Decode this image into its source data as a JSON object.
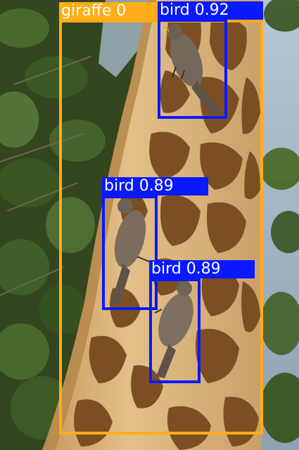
{
  "detections": [
    {
      "label": "giraffe 0",
      "class": "giraffe",
      "color": "#ffad18"
    },
    {
      "label": "bird 0.92",
      "class": "bird",
      "confidence": 0.92,
      "color": "#0a19ff"
    },
    {
      "label": "bird 0.89",
      "class": "bird",
      "confidence": 0.89,
      "color": "#0a19ff"
    },
    {
      "label": "bird 0.89",
      "class": "bird",
      "confidence": 0.89,
      "color": "#0a19ff"
    }
  ],
  "palette": {
    "foliage": "#3f5a2a",
    "sky": "#a7b9c8",
    "giraffe_base": "#d7b27a",
    "giraffe_patch": "#7b4f23",
    "bird": "#7a6d5e"
  }
}
